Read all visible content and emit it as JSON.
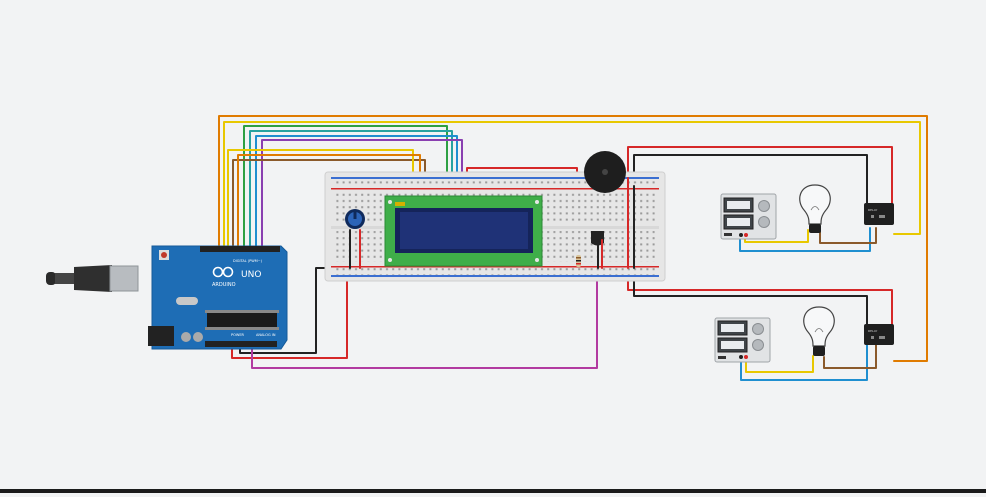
{
  "arduino": {
    "logo": "ARDUINO",
    "model": "UNO",
    "digital_label": "DIGITAL (PWM~)",
    "power_label": "POWER",
    "analog_label": "ANALOG IN"
  },
  "relay_label": "RELAY",
  "colors": {
    "background": "#f2f3f4",
    "arduino_board": "#1e6db5",
    "breadboard": "#e6e6e6",
    "lcd_pcb": "#3fae49",
    "lcd_screen": "#15245a",
    "wire_red": "#d62828",
    "wire_black": "#222222",
    "wire_orange": "#e07b00",
    "wire_yellow": "#e8c800",
    "wire_green": "#2ea043",
    "wire_blue": "#1f8fd0",
    "wire_purple": "#8a3fb0",
    "wire_magenta": "#b23aa0",
    "wire_brown": "#8b5a2b"
  }
}
